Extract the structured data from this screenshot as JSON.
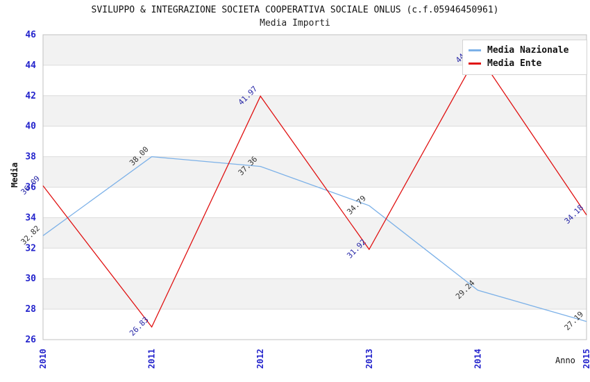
{
  "header": {
    "title": "SVILUPPO & INTEGRAZIONE SOCIETA COOPERATIVA SOCIALE ONLUS (c.f.05946450961)",
    "subtitle": "Media Importi"
  },
  "axes": {
    "y_label": "Media",
    "x_label": "Anno"
  },
  "legend": {
    "items": [
      {
        "label": "Media Nazionale",
        "color": "#7cb1e8"
      },
      {
        "label": "Media Ente",
        "color": "#e01111"
      }
    ]
  },
  "chart_data": {
    "type": "line",
    "title": "SVILUPPO & INTEGRAZIONE SOCIETA COOPERATIVA SOCIALE ONLUS (c.f.05946450961)",
    "subtitle": "Media Importi",
    "xlabel": "Anno",
    "ylabel": "Media",
    "categories": [
      "2010",
      "2011",
      "2012",
      "2013",
      "2014",
      "2015"
    ],
    "series": [
      {
        "name": "Media Nazionale",
        "color": "#7cb1e8",
        "label_color": "#333333",
        "values": [
          32.82,
          38.0,
          37.36,
          34.79,
          29.24,
          27.19
        ],
        "labels": [
          "32.82",
          "38.00",
          "37.36",
          "34.79",
          "29.24",
          "27.19"
        ]
      },
      {
        "name": "Media Ente",
        "color": "#e01111",
        "label_color": "#2626a6",
        "values": [
          36.09,
          26.83,
          41.97,
          31.92,
          44.74,
          34.18
        ],
        "labels": [
          "36.09",
          "26.83",
          "41.97",
          "31.92",
          "44.74",
          "34.18"
        ]
      }
    ],
    "ylim": [
      26,
      46
    ],
    "ytick_step": 2,
    "grid": "horizontal-bands",
    "band_colors": [
      "#f2f2f2",
      "#ffffff"
    ],
    "gridline_color": "#dcdcdc",
    "plot_border_color": "#c0c0c0",
    "tick_label_color": "#2424cc",
    "legend_position": "top-right"
  }
}
